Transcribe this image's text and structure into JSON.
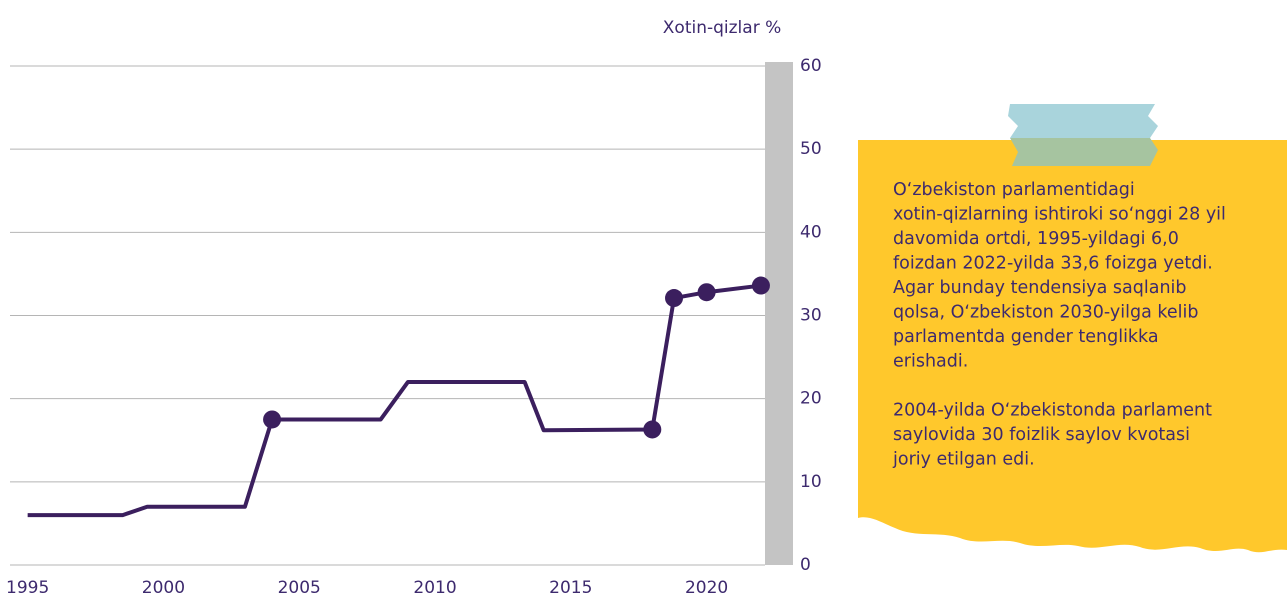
{
  "chart_data": {
    "type": "line",
    "y_axis_label": "Xotin-qizlar %",
    "x": [
      1995,
      1998.5,
      1999.4,
      2003,
      2004,
      2008,
      2009,
      2013.3,
      2014,
      2018,
      2018.8,
      2020,
      2022
    ],
    "series": [
      {
        "color": "#3b1f5e",
        "values": [
          6.0,
          6.0,
          7.0,
          7.0,
          17.5,
          17.5,
          22.0,
          22.0,
          16.2,
          16.3,
          32.1,
          32.8,
          33.6
        ],
        "markers": [
          4,
          9,
          10,
          11,
          12
        ]
      }
    ],
    "xlim": [
      1994.35,
      2022.15
    ],
    "xticks": [
      1995,
      2000,
      2005,
      2010,
      2015,
      2020
    ],
    "ylim": [
      0,
      60
    ],
    "yticks": [
      0,
      10,
      20,
      30,
      40,
      50,
      60
    ],
    "y_axis_side": "right",
    "grid": true
  },
  "note": {
    "paragraphs": [
      [
        "O‘zbekiston parlamentidagi",
        "xotin-qizlarning ishtiroki so‘nggi 28 yil",
        "davomida ortdi, 1995-yildagi 6,0",
        "foizdan 2022-yilda 33,6 foizga yetdi.",
        "Agar bunday tendensiya saqlanib",
        "qolsa, O‘zbekiston 2030-yilga kelib",
        "parlamentda gender tenglikka",
        "erishadi."
      ],
      [
        "2004-yilda O‘zbekistonda parlament",
        "saylovida 30 foizlik saylov kvotasi",
        "joriy etilgan edi."
      ]
    ]
  }
}
